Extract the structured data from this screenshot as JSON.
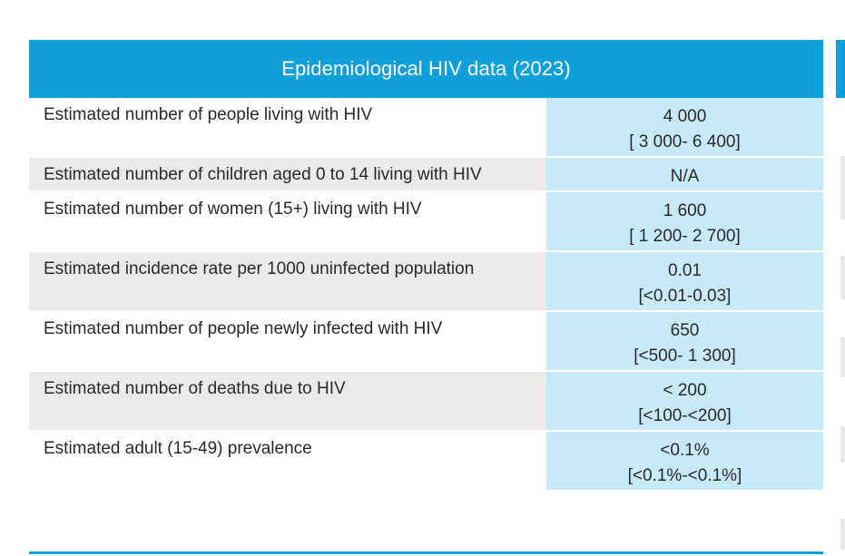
{
  "table": {
    "title": "Epidemiological HIV data (2023)",
    "rows": [
      {
        "label": "Estimated number of people living with HIV",
        "value": "4 000",
        "range": "[ 3 000- 6 400]"
      },
      {
        "label": "Estimated number of children aged 0 to 14 living with HIV",
        "value": "N/A",
        "range": ""
      },
      {
        "label": "Estimated number of women (15+) living with HIV",
        "value": "1 600",
        "range": "[ 1 200- 2 700]"
      },
      {
        "label": "Estimated incidence rate per 1000 uninfected population",
        "value": "0.01",
        "range": "[<0.01-0.03]"
      },
      {
        "label": "Estimated number of people newly infected with HIV",
        "value": "650",
        "range": "[<500- 1 300]"
      },
      {
        "label": "Estimated number of deaths due to HIV",
        "value": "< 200",
        "range": "[<100-<200]"
      },
      {
        "label": "Estimated adult (15-49) prevalence",
        "value": "<0.1%",
        "range": "[<0.1%-<0.1%]"
      }
    ]
  },
  "colors": {
    "header": "#0fa0dc",
    "value_cell": "#c8e9f8",
    "shaded_row": "#ece9e9"
  }
}
